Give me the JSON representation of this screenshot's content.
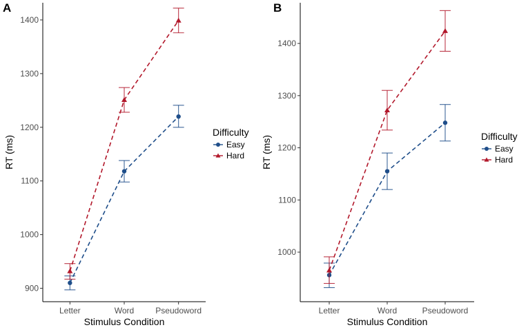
{
  "chart_data": [
    {
      "panel": "A",
      "type": "line",
      "title": "",
      "xlabel": "Stimulus Condition",
      "ylabel": "RT (ms)",
      "categories": [
        "Letter",
        "Word",
        "Pseudoword"
      ],
      "ylim": [
        875,
        1432
      ],
      "yticks": [
        900,
        1000,
        1100,
        1200,
        1300,
        1400
      ],
      "grid": false,
      "legend": {
        "title": "Difficulty",
        "position": "right"
      },
      "series": [
        {
          "name": "Easy",
          "color": "#1f4e8a",
          "marker": "circle",
          "line": "dashed",
          "values": [
            910,
            1118,
            1220
          ],
          "lower": [
            897,
            1098,
            1200
          ],
          "upper": [
            923,
            1138,
            1241
          ]
        },
        {
          "name": "Hard",
          "color": "#b2182b",
          "marker": "triangle",
          "line": "dashed",
          "values": [
            932,
            1251,
            1399
          ],
          "lower": [
            917,
            1228,
            1376
          ],
          "upper": [
            946,
            1274,
            1422
          ]
        }
      ]
    },
    {
      "panel": "B",
      "type": "line",
      "title": "",
      "xlabel": "Stimulus Condition",
      "ylabel": "RT (ms)",
      "categories": [
        "Letter",
        "Word",
        "Pseudoword"
      ],
      "ylim": [
        905,
        1478
      ],
      "yticks": [
        1000,
        1100,
        1200,
        1300,
        1400
      ],
      "grid": false,
      "legend": {
        "title": "Difficulty",
        "position": "right"
      },
      "series": [
        {
          "name": "Easy",
          "color": "#1f4e8a",
          "marker": "circle",
          "line": "dashed",
          "values": [
            956,
            1155,
            1248
          ],
          "lower": [
            932,
            1120,
            1213
          ],
          "upper": [
            979,
            1190,
            1283
          ]
        },
        {
          "name": "Hard",
          "color": "#b2182b",
          "marker": "triangle",
          "line": "dashed",
          "values": [
            965,
            1272,
            1424
          ],
          "lower": [
            940,
            1234,
            1385
          ],
          "upper": [
            991,
            1310,
            1463
          ]
        }
      ]
    }
  ]
}
